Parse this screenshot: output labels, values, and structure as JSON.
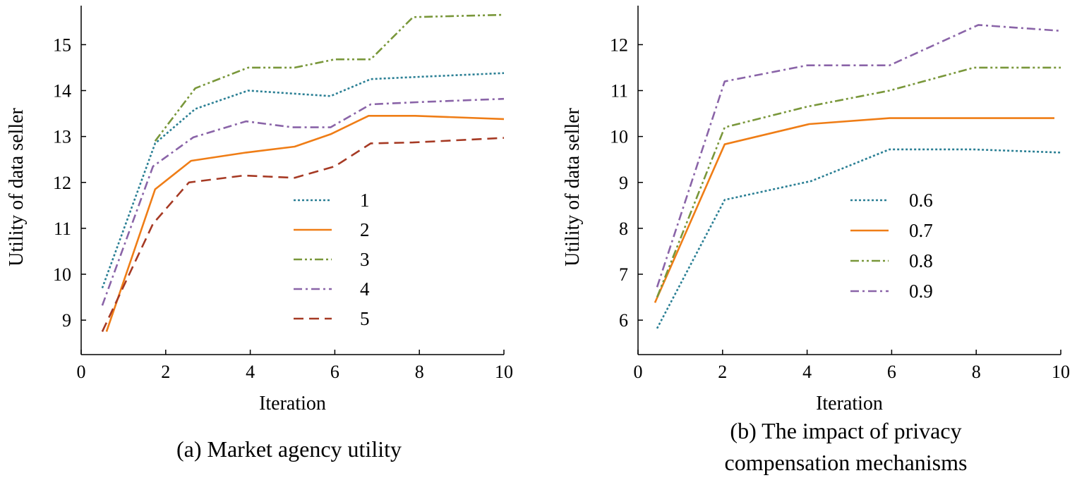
{
  "colors": {
    "series1": "#2a7f94",
    "series2": "#ef7d16",
    "series3": "#79973a",
    "series4": "#8a64a8",
    "series5": "#a63a24",
    "axis": "#000000"
  },
  "chart_data": [
    {
      "type": "line",
      "caption": "(a) Market agency utility",
      "xlabel": "Iteration",
      "ylabel": "Utility of data seller",
      "xlim": [
        0,
        10
      ],
      "ylim": [
        8.25,
        15.85
      ],
      "xticks": [
        0,
        2,
        4,
        6,
        8,
        10
      ],
      "yticks": [
        9,
        10,
        11,
        12,
        13,
        14,
        15
      ],
      "legend_position": "center-right",
      "series": [
        {
          "name": "1",
          "color": "#2a7f94",
          "dash": "dotted",
          "x": [
            0.5,
            1.75,
            2.7,
            3.95,
            5.9,
            6.85,
            8.0,
            10.0
          ],
          "y": [
            9.7,
            12.85,
            13.6,
            14.0,
            13.88,
            14.25,
            14.3,
            14.38
          ]
        },
        {
          "name": "2",
          "color": "#ef7d16",
          "dash": "solid",
          "x": [
            0.6,
            1.75,
            2.6,
            3.9,
            5.05,
            5.9,
            6.8,
            7.9,
            10.0
          ],
          "y": [
            8.75,
            11.85,
            12.47,
            12.65,
            12.78,
            13.05,
            13.45,
            13.45,
            13.38
          ]
        },
        {
          "name": "3",
          "color": "#79973a",
          "dash": "dashdotdot",
          "x": [
            1.75,
            2.7,
            3.95,
            5.05,
            6.0,
            6.85,
            7.85,
            10.0
          ],
          "y": [
            12.9,
            14.05,
            14.5,
            14.5,
            14.68,
            14.68,
            15.6,
            15.65
          ]
        },
        {
          "name": "4",
          "color": "#8a64a8",
          "dash": "dashdot",
          "x": [
            0.5,
            1.7,
            2.65,
            3.9,
            5.0,
            5.9,
            6.85,
            8.0,
            10.0
          ],
          "y": [
            9.32,
            12.35,
            12.98,
            13.33,
            13.2,
            13.2,
            13.7,
            13.75,
            13.82
          ]
        },
        {
          "name": "5",
          "color": "#a63a24",
          "dash": "dashed",
          "x": [
            0.5,
            1.7,
            2.55,
            3.85,
            5.05,
            6.0,
            6.85,
            7.85,
            10.0
          ],
          "y": [
            8.75,
            11.1,
            12.0,
            12.15,
            12.1,
            12.35,
            12.85,
            12.87,
            12.97
          ]
        }
      ]
    },
    {
      "type": "line",
      "caption": "(b) The impact of privacy compensation mechanisms",
      "caption_lines": [
        "(b) The impact of privacy",
        "compensation mechanisms"
      ],
      "xlabel": "Iteration",
      "ylabel": "Utility of data seller",
      "xlim": [
        0,
        10
      ],
      "ylim": [
        5.25,
        12.85
      ],
      "xticks": [
        0,
        2,
        4,
        6,
        8,
        10
      ],
      "yticks": [
        6,
        7,
        8,
        9,
        10,
        11,
        12
      ],
      "legend_position": "center-right",
      "series": [
        {
          "name": "0.6",
          "color": "#2a7f94",
          "dash": "dotted",
          "x": [
            0.45,
            2.05,
            4.1,
            5.95,
            7.9,
            10.0
          ],
          "y": [
            5.82,
            8.62,
            9.03,
            9.72,
            9.72,
            9.65
          ]
        },
        {
          "name": "0.7",
          "color": "#ef7d16",
          "dash": "solid",
          "x": [
            0.4,
            2.05,
            4.05,
            5.95,
            7.95,
            9.85
          ],
          "y": [
            6.38,
            9.83,
            10.27,
            10.4,
            10.4,
            10.4
          ]
        },
        {
          "name": "0.8",
          "color": "#79973a",
          "dash": "dashdotdot",
          "x": [
            0.45,
            2.05,
            4.0,
            5.95,
            7.95,
            10.0
          ],
          "y": [
            6.5,
            10.2,
            10.65,
            11.0,
            11.5,
            11.5
          ]
        },
        {
          "name": "0.9",
          "color": "#8a64a8",
          "dash": "dashdot",
          "x": [
            0.45,
            2.05,
            4.0,
            5.95,
            8.05,
            10.0
          ],
          "y": [
            6.72,
            11.2,
            11.55,
            11.55,
            12.43,
            12.3
          ]
        }
      ]
    }
  ]
}
